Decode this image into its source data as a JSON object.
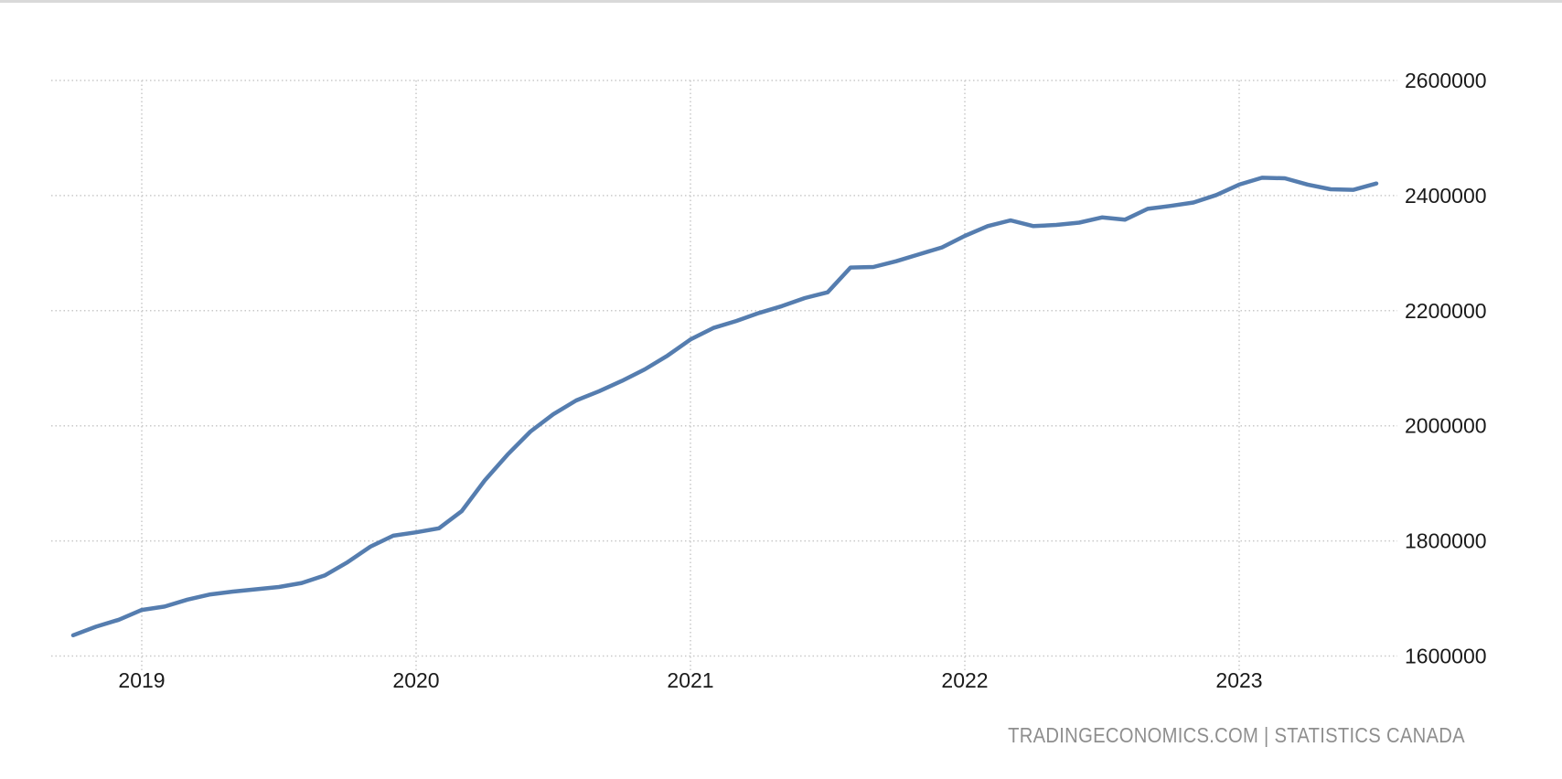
{
  "page": {
    "background_color": "#ffffff",
    "top_border_color": "#d9d9d9",
    "axis_label_color": "#1a1a1a",
    "grid_color": "#c9c9c9",
    "attribution_color": "#8e8e8e"
  },
  "chart_data": {
    "type": "line",
    "title": "",
    "xlabel": "",
    "ylabel": "",
    "legend": null,
    "grid": "dotted horizontal and vertical",
    "line_color": "#557DAF",
    "ylim": [
      1600000,
      2600000
    ],
    "y_ticks": [
      1600000,
      1800000,
      2000000,
      2200000,
      2400000,
      2600000
    ],
    "y_tick_labels": [
      "1600000",
      "1800000",
      "2000000",
      "2200000",
      "2400000",
      "2600000"
    ],
    "x_tick_labels": [
      "2019",
      "2020",
      "2021",
      "2022",
      "2023"
    ],
    "x": [
      "2018-10",
      "2018-11",
      "2018-12",
      "2019-01",
      "2019-02",
      "2019-03",
      "2019-04",
      "2019-05",
      "2019-06",
      "2019-07",
      "2019-08",
      "2019-09",
      "2019-10",
      "2019-11",
      "2019-12",
      "2020-01",
      "2020-02",
      "2020-03",
      "2020-04",
      "2020-05",
      "2020-06",
      "2020-07",
      "2020-08",
      "2020-09",
      "2020-10",
      "2020-11",
      "2020-12",
      "2021-01",
      "2021-02",
      "2021-03",
      "2021-04",
      "2021-05",
      "2021-06",
      "2021-07",
      "2021-08",
      "2021-09",
      "2021-10",
      "2021-11",
      "2021-12",
      "2022-01",
      "2022-02",
      "2022-03",
      "2022-04",
      "2022-05",
      "2022-06",
      "2022-07",
      "2022-08",
      "2022-09",
      "2022-10",
      "2022-11",
      "2022-12",
      "2023-01",
      "2023-02",
      "2023-03",
      "2023-04",
      "2023-05",
      "2023-06",
      "2023-07"
    ],
    "values": [
      1636000,
      1651000,
      1663000,
      1680000,
      1686000,
      1698000,
      1707000,
      1712000,
      1716000,
      1720000,
      1727000,
      1740000,
      1763000,
      1790000,
      1809000,
      1815000,
      1822000,
      1852000,
      1905000,
      1950000,
      1990000,
      2020000,
      2044000,
      2060000,
      2078000,
      2098000,
      2122000,
      2150000,
      2170000,
      2182000,
      2196000,
      2208000,
      2222000,
      2232000,
      2275000,
      2276000,
      2286000,
      2298000,
      2310000,
      2330000,
      2347000,
      2357000,
      2347000,
      2349000,
      2353000,
      2362000,
      2358000,
      2377000,
      2382000,
      2388000,
      2401000,
      2419000,
      2431000,
      2430000,
      2419000,
      2411000,
      2410000,
      2421000
    ],
    "source": "TRADINGECONOMICS.COM | STATISTICS CANADA"
  }
}
